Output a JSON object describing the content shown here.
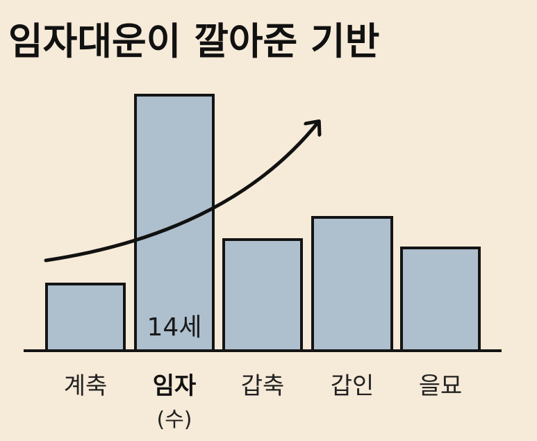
{
  "chart_data": {
    "type": "bar",
    "title": "임자대운이 깔아준 기반",
    "categories": [
      "계축",
      "임자",
      "갑축",
      "갑인",
      "을묘"
    ],
    "values": [
      24,
      92,
      40,
      48,
      37
    ],
    "highlight_category": "임자",
    "highlight_sublabel": "(수)",
    "bar_annotation": {
      "category": "임자",
      "text": "14세"
    },
    "trend_arrow": true,
    "ylim": [
      0,
      100
    ],
    "grid": false,
    "colors": {
      "bar_fill": "#aebfcd",
      "bar_stroke": "#141414",
      "arrow": "#111111",
      "background": "#f6ead8"
    }
  }
}
